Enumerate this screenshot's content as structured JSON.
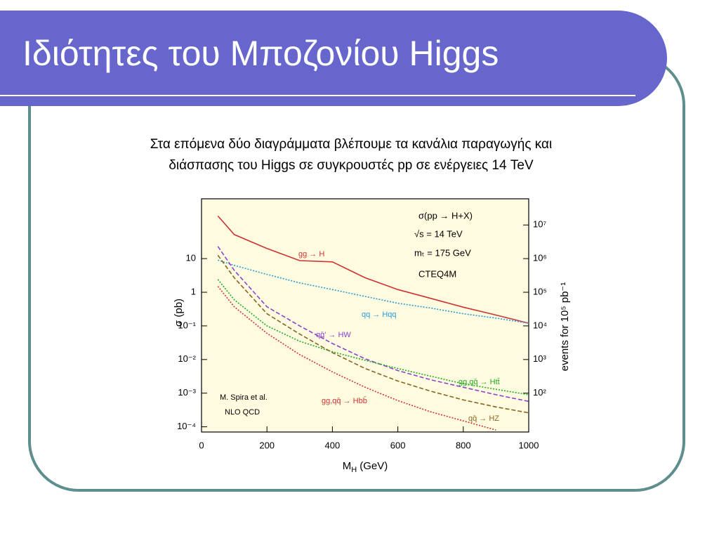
{
  "slide": {
    "title": "Ιδιότητες του Μποζονίου Higgs",
    "text_lines": [
      "Στα επόμενα δύο διαγράμματα βλέπουμε τα κανάλια παραγωγής και",
      "διάσπασης του Higgs σε συγκρουστές pp σε ενέργειες 14 TeV"
    ]
  },
  "chart_data": {
    "type": "line",
    "xlabel": {
      "text": "M",
      "sub": "H",
      "unit": "(GeV)"
    },
    "ylabel": "σ (pb)",
    "y2label": "events for 10⁵ pb⁻¹",
    "annotations": [
      "σ(pp → H+X)",
      "√s = 14 TeV",
      "mₜ = 175 GeV",
      "CTEQ4M",
      "M. Spira et al.",
      "NLO  QCD"
    ],
    "x": [
      50,
      100,
      200,
      300,
      400,
      500,
      600,
      700,
      800,
      900,
      1000
    ],
    "series": [
      {
        "name": "gg → H",
        "color": "#cc3333",
        "style": "solid",
        "values": [
          186,
          52,
          20,
          8.7,
          8,
          2.7,
          1.2,
          0.66,
          0.36,
          0.21,
          0.12
        ]
      },
      {
        "name": "qq → Hqq",
        "color": "#2b9ad8",
        "style": "dotted",
        "values": [
          9,
          6.3,
          3.4,
          1.9,
          1.2,
          0.75,
          0.47,
          0.34,
          0.23,
          0.17,
          0.12
        ]
      },
      {
        "name": "qq̄' → HW",
        "color": "#8844cc",
        "style": "dashed",
        "values": [
          23,
          4.5,
          0.37,
          0.1,
          0.03,
          0.0105,
          0.0047,
          0.0025,
          0.0015,
          0.0009,
          0.00057
        ]
      },
      {
        "name": "gg,qq̄ → Htt̄",
        "color": "#22aa22",
        "style": "dotted",
        "values": [
          2.4,
          0.6,
          0.1,
          0.035,
          0.017,
          0.0095,
          0.0054,
          0.0032,
          0.0019,
          0.0013,
          0.0009
        ]
      },
      {
        "name": "gg,qq̄ → Hbb̄",
        "color": "#cc3333",
        "style": "dotted",
        "values": [
          1.5,
          0.37,
          0.06,
          0.014,
          0.0043,
          0.0015,
          0.0006,
          0.00028,
          0.00015,
          8e-05,
          null
        ]
      },
      {
        "name": "qq̄ → HZ",
        "color": "#886622",
        "style": "dashed",
        "values": [
          12.6,
          2.7,
          0.23,
          0.057,
          0.016,
          0.0054,
          0.0023,
          0.00115,
          0.00063,
          0.00039,
          0.00026
        ]
      }
    ],
    "xlim": [
      0,
      1000
    ],
    "xticks": [
      0,
      200,
      400,
      600,
      800,
      1000
    ],
    "ylim": [
      7e-05,
      600
    ],
    "log_y": true,
    "yticks": [
      {
        "value": 0.0001,
        "label": "10⁻⁴"
      },
      {
        "value": 0.001,
        "label": "10⁻³"
      },
      {
        "value": 0.01,
        "label": "10⁻²"
      },
      {
        "value": 0.1,
        "label": "10⁻¹"
      },
      1,
      10
    ],
    "y2lim": [
      7,
      60000000
    ],
    "y2ticks": [
      {
        "value": 100,
        "label": "10²"
      },
      {
        "value": 1000,
        "label": "10³"
      },
      {
        "value": 10000,
        "label": "10⁴"
      },
      {
        "value": 100000,
        "label": "10⁵"
      },
      {
        "value": 1000000,
        "label": "10⁶"
      },
      {
        "value": 10000000,
        "label": "10⁷"
      }
    ],
    "background": "#fffbe0"
  }
}
